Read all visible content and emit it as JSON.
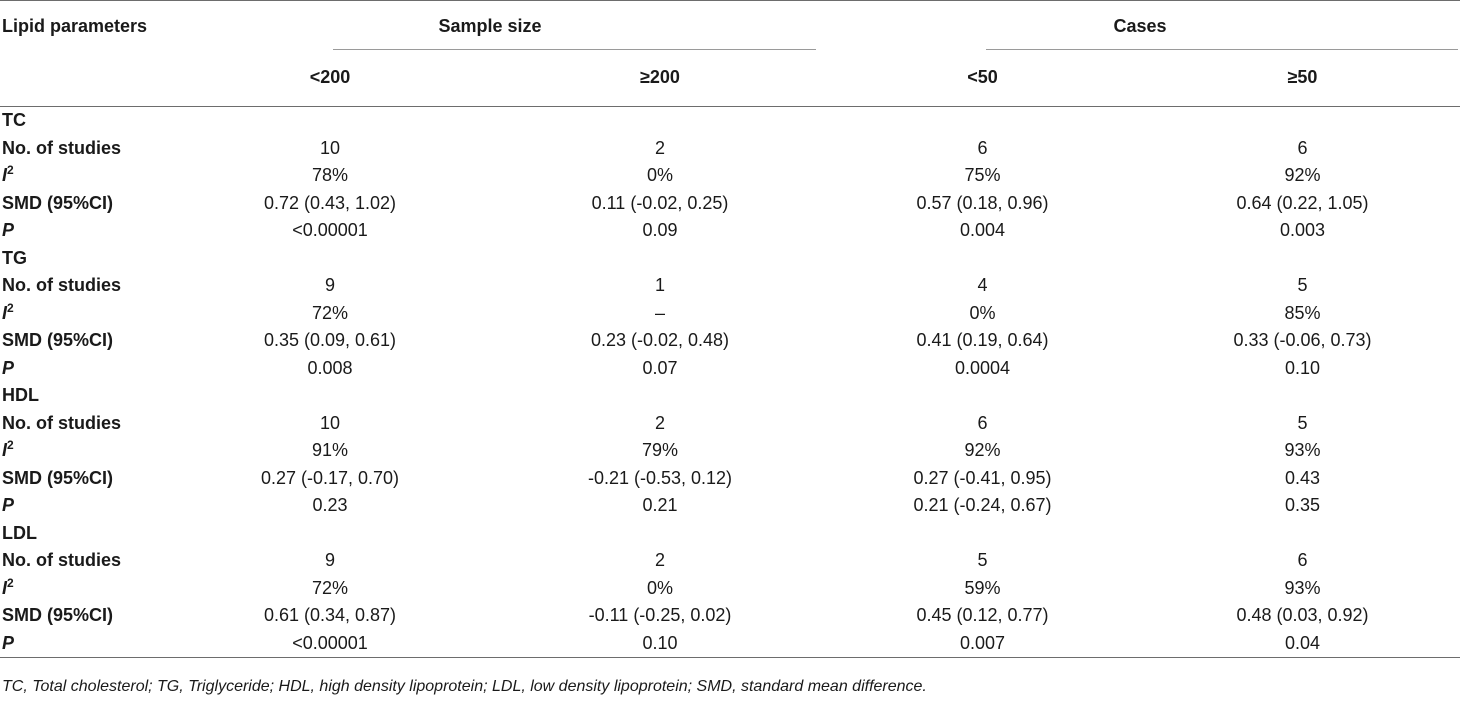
{
  "table": {
    "corner_header": "Lipid parameters",
    "groups": [
      {
        "label": "Sample size"
      },
      {
        "label": "Cases"
      }
    ],
    "columns": [
      "<200",
      "≥200",
      "<50",
      "≥50"
    ],
    "sections": [
      {
        "title": "TC",
        "rows": [
          {
            "label": "No. of studies",
            "values": [
              "10",
              "2",
              "6",
              "6"
            ]
          },
          {
            "label": "I",
            "sup": "2",
            "values": [
              "78%",
              "0%",
              "75%",
              "92%"
            ]
          },
          {
            "label": "SMD (95%CI)",
            "values": [
              "0.72 (0.43, 1.02)",
              "0.11 (-0.02, 0.25)",
              "0.57 (0.18, 0.96)",
              "0.64 (0.22, 1.05)"
            ]
          },
          {
            "label": "P",
            "values": [
              "<0.00001",
              "0.09",
              "0.004",
              "0.003"
            ]
          }
        ]
      },
      {
        "title": "TG",
        "rows": [
          {
            "label": "No. of studies",
            "values": [
              "9",
              "1",
              "4",
              "5"
            ]
          },
          {
            "label": "I",
            "sup": "2",
            "values": [
              "72%",
              "–",
              "0%",
              "85%"
            ]
          },
          {
            "label": "SMD (95%CI)",
            "values": [
              "0.35 (0.09, 0.61)",
              "0.23 (-0.02, 0.48)",
              "0.41 (0.19, 0.64)",
              "0.33 (-0.06, 0.73)"
            ]
          },
          {
            "label": "P",
            "values": [
              "0.008",
              "0.07",
              "0.0004",
              "0.10"
            ]
          }
        ]
      },
      {
        "title": "HDL",
        "rows": [
          {
            "label": "No. of studies",
            "values": [
              "10",
              "2",
              "6",
              "5"
            ]
          },
          {
            "label": "I",
            "sup": "2",
            "values": [
              "91%",
              "79%",
              "92%",
              "93%"
            ]
          },
          {
            "label": "SMD (95%CI)",
            "values": [
              "0.27 (-0.17, 0.70)",
              "-0.21 (-0.53, 0.12)",
              "0.27 (-0.41, 0.95)",
              "0.43"
            ]
          },
          {
            "label": "P",
            "values": [
              "0.23",
              "0.21",
              "0.21 (-0.24, 0.67)",
              "0.35"
            ]
          }
        ]
      },
      {
        "title": "LDL",
        "rows": [
          {
            "label": "No. of studies",
            "values": [
              "9",
              "2",
              "5",
              "6"
            ]
          },
          {
            "label": "I",
            "sup": "2",
            "values": [
              "72%",
              "0%",
              "59%",
              "93%"
            ]
          },
          {
            "label": "SMD (95%CI)",
            "values": [
              "0.61 (0.34, 0.87)",
              "-0.11 (-0.25, 0.02)",
              "0.45 (0.12, 0.77)",
              "0.48 (0.03, 0.92)"
            ]
          },
          {
            "label": "P",
            "values": [
              "<0.00001",
              "0.10",
              "0.007",
              "0.04"
            ]
          }
        ]
      }
    ]
  },
  "footnote": "TC, Total cholesterol; TG, Triglyceride; HDL, high density lipoprotein; LDL, low density lipoprotein; SMD, standard mean difference."
}
